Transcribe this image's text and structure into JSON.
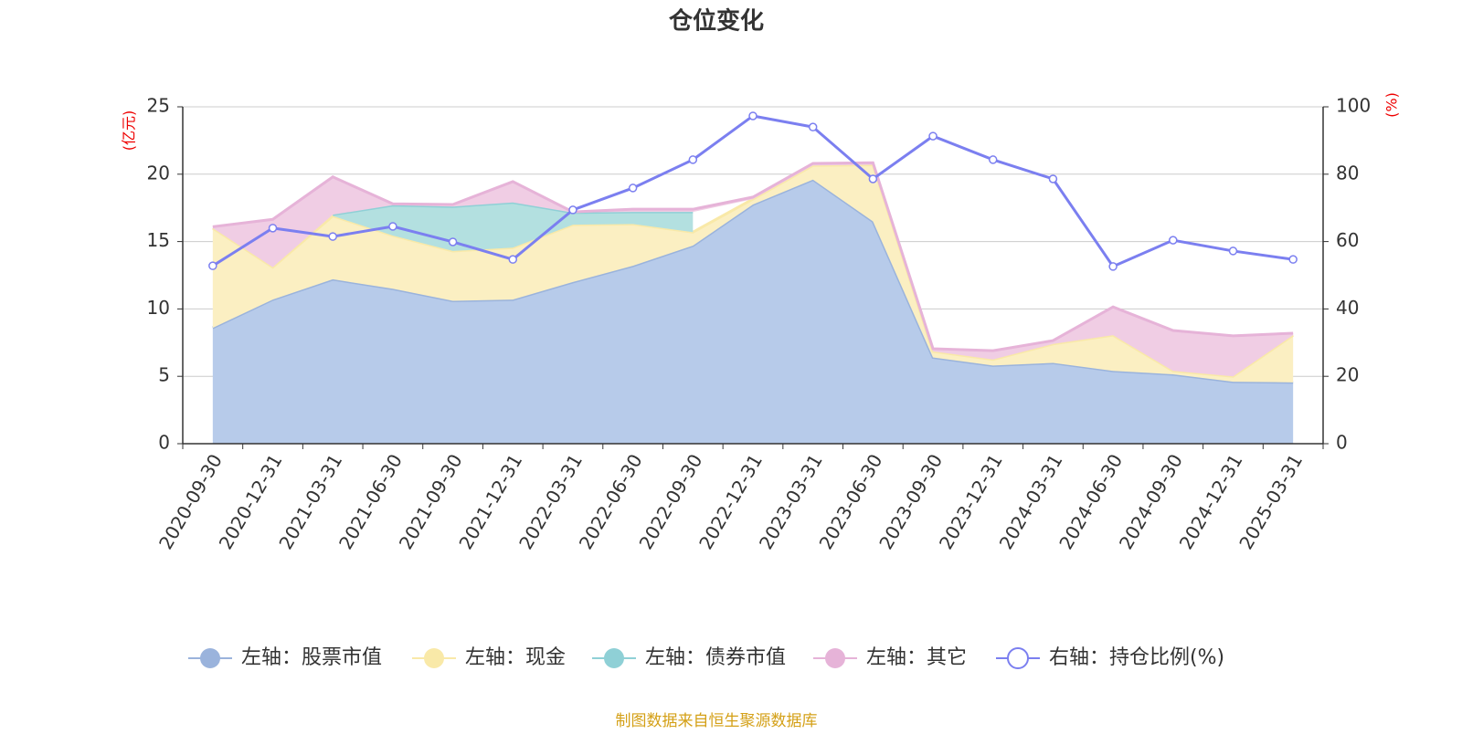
{
  "chart_data": {
    "type": "stacked-area-line",
    "title": "仓位变化",
    "y_axis_label": "(亿元)",
    "y2_axis_label": "(%)",
    "source": "制图数据来自恒生聚源数据库",
    "categories": [
      "2020-09-30",
      "2020-12-31",
      "2021-03-31",
      "2021-06-30",
      "2021-09-30",
      "2021-12-31",
      "2022-03-31",
      "2022-06-30",
      "2022-09-30",
      "2022-12-31",
      "2023-03-31",
      "2023-06-30",
      "2023-09-30",
      "2023-12-31",
      "2024-03-31",
      "2024-06-30",
      "2024-09-30",
      "2024-12-31",
      "2025-03-31"
    ],
    "ylim": [
      0,
      25
    ],
    "yticks": [
      0,
      5,
      10,
      15,
      20,
      25
    ],
    "y2lim": [
      0,
      100
    ],
    "y2ticks": [
      0,
      20,
      40,
      60,
      80,
      100
    ],
    "grid": true,
    "series": [
      {
        "name": "左轴：股票市值",
        "color": "#9ab3dc",
        "fill": "#b7cbea",
        "values": [
          8.6,
          10.7,
          12.2,
          11.5,
          10.6,
          10.7,
          12.0,
          13.2,
          14.7,
          17.75,
          19.6,
          16.5,
          6.4,
          5.8,
          6.0,
          5.4,
          5.15,
          4.6,
          4.55
        ]
      },
      {
        "name": "左轴：现金",
        "color": "#f9e9a8",
        "fill": "#fbefc2",
        "values": [
          7.4,
          2.4,
          4.7,
          3.95,
          3.7,
          3.85,
          4.25,
          3.1,
          1.0,
          0.4,
          1.05,
          4.2,
          0.45,
          0.45,
          1.4,
          2.65,
          0.25,
          0.4,
          3.5
        ]
      },
      {
        "name": "左轴：债券市值",
        "color": "#8fd0d6",
        "fill": "#b3e0e0",
        "values": [
          null,
          null,
          0.1,
          2.25,
          3.3,
          3.35,
          0.9,
          0.9,
          1.5,
          null,
          null,
          null,
          null,
          null,
          null,
          null,
          null,
          null,
          null
        ]
      },
      {
        "name": "左轴：其它",
        "color": "#e6b3d8",
        "fill": "#f0cde4",
        "values": [
          0.1,
          3.55,
          2.8,
          0.1,
          0.15,
          1.55,
          0.05,
          0.2,
          0.2,
          0.15,
          0.15,
          0.15,
          0.2,
          0.65,
          0.25,
          2.1,
          3.0,
          3.0,
          0.15
        ]
      },
      {
        "name": "右轴：持仓比例(%)",
        "color": "#7b7ff0",
        "axis": "y2",
        "values": [
          52.8,
          64.0,
          61.5,
          64.5,
          59.9,
          54.7,
          69.4,
          75.9,
          84.3,
          97.3,
          94.0,
          78.6,
          91.3,
          84.3,
          78.6,
          52.6,
          60.4,
          57.2,
          54.7
        ]
      }
    ]
  }
}
